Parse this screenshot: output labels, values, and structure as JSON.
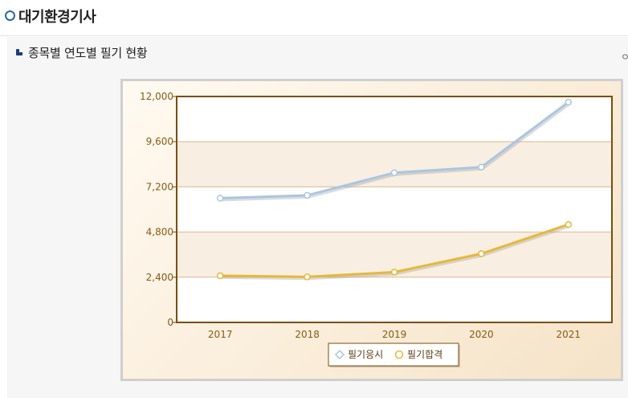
{
  "page": {
    "title": "대기환경기사",
    "section_title": "종목별 연도별 필기 현황",
    "cut_text": "ㅇ"
  },
  "colors": {
    "series_applicants": "#a9c6e2",
    "series_passers": "#e6b83a",
    "frame_border": "#7a4e10",
    "tick_text": "#8a5a12"
  },
  "chart_data": {
    "type": "line",
    "title": "",
    "xlabel": "",
    "ylabel": "",
    "categories": [
      "2017",
      "2018",
      "2019",
      "2020",
      "2021"
    ],
    "ylim": [
      0,
      12000
    ],
    "yticks": [
      0,
      2400,
      4800,
      7200,
      9600,
      12000
    ],
    "ytick_labels": [
      "0",
      "2,400",
      "4,800",
      "7,200",
      "9,600",
      "12,000"
    ],
    "grid": true,
    "legend_position": "bottom-center",
    "series": [
      {
        "name": "필기응시",
        "values": [
          6600,
          6750,
          7950,
          8250,
          11700
        ]
      },
      {
        "name": "필기합격",
        "values": [
          2480,
          2420,
          2670,
          3650,
          5200
        ]
      }
    ]
  }
}
